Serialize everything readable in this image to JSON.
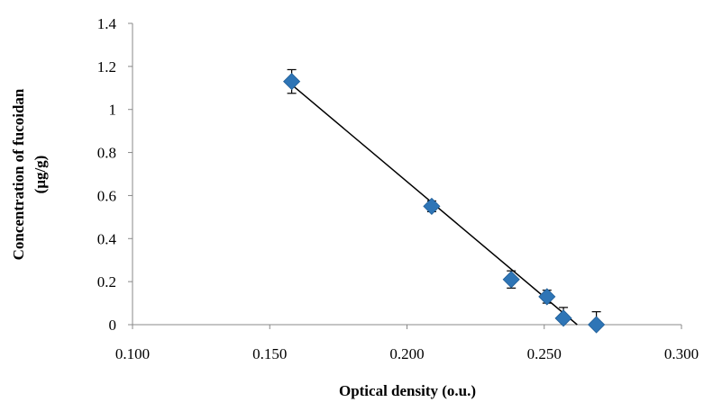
{
  "chart_data": {
    "type": "scatter",
    "title": "",
    "xlabel": "Optical density (o.u.)",
    "ylabel_line1": "Concentration of fucoidan",
    "ylabel_line2": "(μg/g)",
    "xlim": [
      0.1,
      0.3
    ],
    "ylim": [
      0,
      1.4
    ],
    "x_ticks": [
      "0.100",
      "0.150",
      "0.200",
      "0.250",
      "0.300"
    ],
    "y_ticks": [
      "0",
      "0.2",
      "0.4",
      "0.6",
      "0.8",
      "1",
      "1.2",
      "1.4"
    ],
    "grid": false,
    "legend": "none",
    "series": [
      {
        "marker": "diamond",
        "color": "#2e75b6",
        "points": [
          {
            "x": 0.158,
            "y": 1.13,
            "err": 0.055
          },
          {
            "x": 0.209,
            "y": 0.55,
            "err": 0.025
          },
          {
            "x": 0.238,
            "y": 0.21,
            "err": 0.04
          },
          {
            "x": 0.251,
            "y": 0.13,
            "err": 0.03
          },
          {
            "x": 0.257,
            "y": 0.03,
            "err": 0.05
          },
          {
            "x": 0.269,
            "y": 0.0,
            "err": 0.06
          }
        ]
      }
    ],
    "trendline": {
      "type": "linear",
      "color": "#000000",
      "x_start": 0.158,
      "x_end": 0.262,
      "y_start": 1.115,
      "y_end": 0.0
    }
  }
}
